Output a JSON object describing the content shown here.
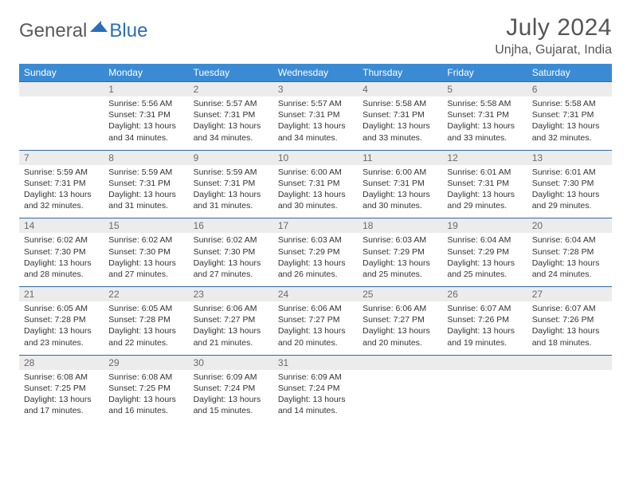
{
  "logo": {
    "general": "General",
    "blue": "Blue",
    "tri_color": "#2a6fb5"
  },
  "title": {
    "month": "July 2024",
    "location": "Unjha, Gujarat, India"
  },
  "colors": {
    "header_bg": "#3b8bd4",
    "header_text": "#ffffff",
    "daynum_bg": "#ececec",
    "daynum_text": "#6a6a6a",
    "week_border": "#2f6aa8",
    "body_text": "#333333",
    "title_text": "#555555"
  },
  "days_of_week": [
    "Sunday",
    "Monday",
    "Tuesday",
    "Wednesday",
    "Thursday",
    "Friday",
    "Saturday"
  ],
  "weeks": [
    {
      "nums": [
        "",
        "1",
        "2",
        "3",
        "4",
        "5",
        "6"
      ],
      "cells": [
        null,
        {
          "sunrise": "Sunrise: 5:56 AM",
          "sunset": "Sunset: 7:31 PM",
          "d1": "Daylight: 13 hours",
          "d2": "and 34 minutes."
        },
        {
          "sunrise": "Sunrise: 5:57 AM",
          "sunset": "Sunset: 7:31 PM",
          "d1": "Daylight: 13 hours",
          "d2": "and 34 minutes."
        },
        {
          "sunrise": "Sunrise: 5:57 AM",
          "sunset": "Sunset: 7:31 PM",
          "d1": "Daylight: 13 hours",
          "d2": "and 34 minutes."
        },
        {
          "sunrise": "Sunrise: 5:58 AM",
          "sunset": "Sunset: 7:31 PM",
          "d1": "Daylight: 13 hours",
          "d2": "and 33 minutes."
        },
        {
          "sunrise": "Sunrise: 5:58 AM",
          "sunset": "Sunset: 7:31 PM",
          "d1": "Daylight: 13 hours",
          "d2": "and 33 minutes."
        },
        {
          "sunrise": "Sunrise: 5:58 AM",
          "sunset": "Sunset: 7:31 PM",
          "d1": "Daylight: 13 hours",
          "d2": "and 32 minutes."
        }
      ]
    },
    {
      "nums": [
        "7",
        "8",
        "9",
        "10",
        "11",
        "12",
        "13"
      ],
      "cells": [
        {
          "sunrise": "Sunrise: 5:59 AM",
          "sunset": "Sunset: 7:31 PM",
          "d1": "Daylight: 13 hours",
          "d2": "and 32 minutes."
        },
        {
          "sunrise": "Sunrise: 5:59 AM",
          "sunset": "Sunset: 7:31 PM",
          "d1": "Daylight: 13 hours",
          "d2": "and 31 minutes."
        },
        {
          "sunrise": "Sunrise: 5:59 AM",
          "sunset": "Sunset: 7:31 PM",
          "d1": "Daylight: 13 hours",
          "d2": "and 31 minutes."
        },
        {
          "sunrise": "Sunrise: 6:00 AM",
          "sunset": "Sunset: 7:31 PM",
          "d1": "Daylight: 13 hours",
          "d2": "and 30 minutes."
        },
        {
          "sunrise": "Sunrise: 6:00 AM",
          "sunset": "Sunset: 7:31 PM",
          "d1": "Daylight: 13 hours",
          "d2": "and 30 minutes."
        },
        {
          "sunrise": "Sunrise: 6:01 AM",
          "sunset": "Sunset: 7:31 PM",
          "d1": "Daylight: 13 hours",
          "d2": "and 29 minutes."
        },
        {
          "sunrise": "Sunrise: 6:01 AM",
          "sunset": "Sunset: 7:30 PM",
          "d1": "Daylight: 13 hours",
          "d2": "and 29 minutes."
        }
      ]
    },
    {
      "nums": [
        "14",
        "15",
        "16",
        "17",
        "18",
        "19",
        "20"
      ],
      "cells": [
        {
          "sunrise": "Sunrise: 6:02 AM",
          "sunset": "Sunset: 7:30 PM",
          "d1": "Daylight: 13 hours",
          "d2": "and 28 minutes."
        },
        {
          "sunrise": "Sunrise: 6:02 AM",
          "sunset": "Sunset: 7:30 PM",
          "d1": "Daylight: 13 hours",
          "d2": "and 27 minutes."
        },
        {
          "sunrise": "Sunrise: 6:02 AM",
          "sunset": "Sunset: 7:30 PM",
          "d1": "Daylight: 13 hours",
          "d2": "and 27 minutes."
        },
        {
          "sunrise": "Sunrise: 6:03 AM",
          "sunset": "Sunset: 7:29 PM",
          "d1": "Daylight: 13 hours",
          "d2": "and 26 minutes."
        },
        {
          "sunrise": "Sunrise: 6:03 AM",
          "sunset": "Sunset: 7:29 PM",
          "d1": "Daylight: 13 hours",
          "d2": "and 25 minutes."
        },
        {
          "sunrise": "Sunrise: 6:04 AM",
          "sunset": "Sunset: 7:29 PM",
          "d1": "Daylight: 13 hours",
          "d2": "and 25 minutes."
        },
        {
          "sunrise": "Sunrise: 6:04 AM",
          "sunset": "Sunset: 7:28 PM",
          "d1": "Daylight: 13 hours",
          "d2": "and 24 minutes."
        }
      ]
    },
    {
      "nums": [
        "21",
        "22",
        "23",
        "24",
        "25",
        "26",
        "27"
      ],
      "cells": [
        {
          "sunrise": "Sunrise: 6:05 AM",
          "sunset": "Sunset: 7:28 PM",
          "d1": "Daylight: 13 hours",
          "d2": "and 23 minutes."
        },
        {
          "sunrise": "Sunrise: 6:05 AM",
          "sunset": "Sunset: 7:28 PM",
          "d1": "Daylight: 13 hours",
          "d2": "and 22 minutes."
        },
        {
          "sunrise": "Sunrise: 6:06 AM",
          "sunset": "Sunset: 7:27 PM",
          "d1": "Daylight: 13 hours",
          "d2": "and 21 minutes."
        },
        {
          "sunrise": "Sunrise: 6:06 AM",
          "sunset": "Sunset: 7:27 PM",
          "d1": "Daylight: 13 hours",
          "d2": "and 20 minutes."
        },
        {
          "sunrise": "Sunrise: 6:06 AM",
          "sunset": "Sunset: 7:27 PM",
          "d1": "Daylight: 13 hours",
          "d2": "and 20 minutes."
        },
        {
          "sunrise": "Sunrise: 6:07 AM",
          "sunset": "Sunset: 7:26 PM",
          "d1": "Daylight: 13 hours",
          "d2": "and 19 minutes."
        },
        {
          "sunrise": "Sunrise: 6:07 AM",
          "sunset": "Sunset: 7:26 PM",
          "d1": "Daylight: 13 hours",
          "d2": "and 18 minutes."
        }
      ]
    },
    {
      "nums": [
        "28",
        "29",
        "30",
        "31",
        "",
        "",
        ""
      ],
      "cells": [
        {
          "sunrise": "Sunrise: 6:08 AM",
          "sunset": "Sunset: 7:25 PM",
          "d1": "Daylight: 13 hours",
          "d2": "and 17 minutes."
        },
        {
          "sunrise": "Sunrise: 6:08 AM",
          "sunset": "Sunset: 7:25 PM",
          "d1": "Daylight: 13 hours",
          "d2": "and 16 minutes."
        },
        {
          "sunrise": "Sunrise: 6:09 AM",
          "sunset": "Sunset: 7:24 PM",
          "d1": "Daylight: 13 hours",
          "d2": "and 15 minutes."
        },
        {
          "sunrise": "Sunrise: 6:09 AM",
          "sunset": "Sunset: 7:24 PM",
          "d1": "Daylight: 13 hours",
          "d2": "and 14 minutes."
        },
        null,
        null,
        null
      ]
    }
  ]
}
